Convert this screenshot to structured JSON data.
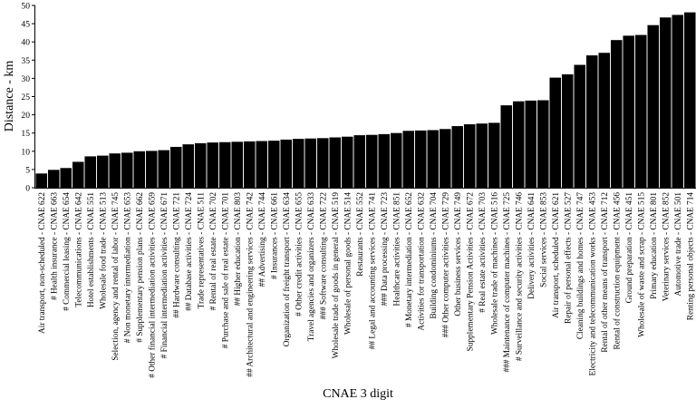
{
  "chart_data": {
    "type": "bar",
    "xlabel": "CNAE 3 digit",
    "ylabel": "Distance - km",
    "ylim": [
      0,
      50
    ],
    "yticks": [
      0,
      5,
      10,
      15,
      20,
      25,
      30,
      35,
      40,
      45,
      50
    ],
    "grid": false,
    "bar_color": "#000000",
    "categories": [
      "Air transport, non-scheduled - CNAE 622",
      "# Health insurance - CNAE 663",
      "# Commercial leasing - CNAE 654",
      "Telecommunications - CNAE 642",
      "Hotel establishments - CNAE 551",
      "Wholesale food trade - CNAE 513",
      "Selection, agency and rental of labor - CNAE 745",
      "# Non monetary intermediation - CNAE 653",
      "# Supplementary pension plans - CNAE 662",
      "# Other financial intermediation activities - CNAE 659",
      "# Financial intermediation activities - CNAE 671",
      "## Hardware consulting - CNAE 721",
      "## Database activities - CNAE 724",
      "Trade representatives - CNAE 511",
      "# Rental of real estate - CNAE 702",
      "# Purchase and sale of real estate - CNAE 701",
      "## Higher education - CNAE 803",
      "## Architectural and engineering services - CNAE 742",
      "## Advertising - CNAE 744",
      "# Insurances - CNAE 661",
      "Organization of freight transport - CNAE 634",
      "# Other credit activities - CNAE 655",
      "Travel agencies and organizers - CNAE 633",
      "### Software consulting - CNAE 722",
      "Wholesale trade of goods in general - CNAE 519",
      "Wholesale of personal goods - CNAE 514",
      "Restaurants - CNAE 552",
      "## Legal and accounting services - CNAE 741",
      "### Data processing - CNAE 723",
      "Healthcare activities - CNAE 851",
      "# Monetary intermediation - CNAE 652",
      "Activities for transportation - CNAE 632",
      "Building condominiums - CNAE 704",
      "### Other computer activities - CNAE 729",
      "Other business services - CNAE 749",
      "Supplementary Pension Activities - CNAE 672",
      "# Real estate activities - CNAE 703",
      "Wholesale trade of machines - CNAE 516",
      "### Maintenance of computer machines - CNAE 725",
      "# Surveillance and security activities - CNAE 746",
      "Delivery activities - CNAE 641",
      "Social services - CNAE 853",
      "Air transport, scheduled - CNAE 621",
      "Repair of personal effects - CNAE 527",
      "Cleaning buildings and homes - CNAE 747",
      "Electricity and telecommunication works - CNAE 453",
      "Rental of other means of transport - CNAE 712",
      "Rental of construction equipment - CNAE 456",
      "Ground preparation - CNAE 451",
      "Wholesale of waste and scrap - CNAE 515",
      "Primary education - CNAE 801",
      "Veterinary services - CNAE 852",
      "Automotive trade - CNAE 501",
      "Renting personal objects - CNAE 714"
    ],
    "values": [
      3.9,
      4.9,
      5.4,
      7.1,
      8.6,
      8.8,
      9.4,
      9.6,
      10.0,
      10.1,
      10.3,
      11.2,
      11.9,
      12.2,
      12.4,
      12.5,
      12.6,
      12.7,
      12.8,
      12.9,
      13.2,
      13.4,
      13.5,
      13.6,
      13.8,
      14.0,
      14.4,
      14.5,
      14.7,
      15.0,
      15.6,
      15.7,
      15.8,
      16.1,
      16.9,
      17.4,
      17.6,
      17.8,
      22.6,
      23.7,
      23.9,
      24.0,
      30.2,
      31.1,
      33.7,
      36.3,
      37.0,
      40.5,
      41.7,
      41.9,
      44.6,
      46.7,
      47.4,
      48.1
    ]
  }
}
